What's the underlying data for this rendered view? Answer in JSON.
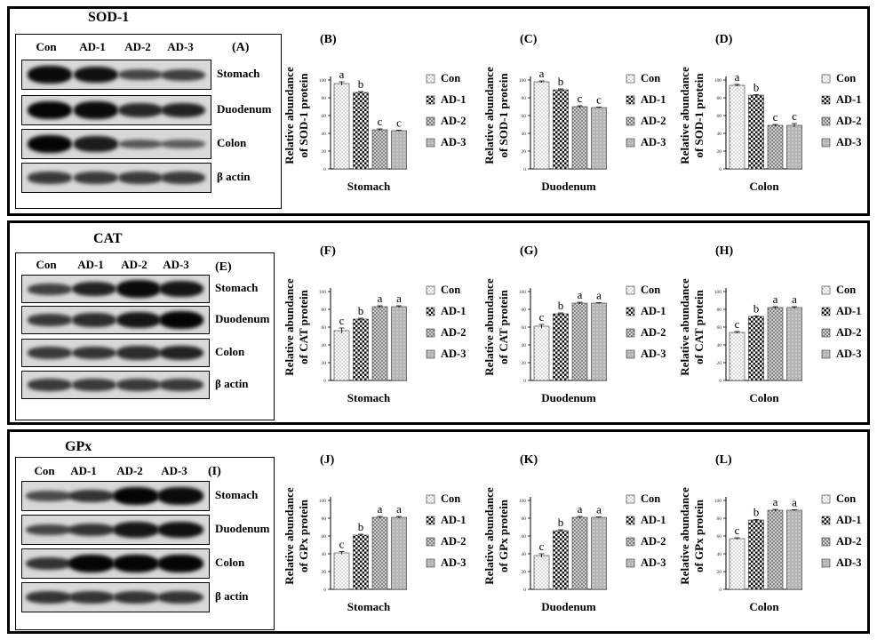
{
  "lanes": [
    "Con",
    "AD-1",
    "AD-2",
    "AD-3"
  ],
  "tissues": [
    "Stomach",
    "Duodenum",
    "Colon"
  ],
  "actin_label": "β actin",
  "sections": [
    {
      "title": "SOD-1",
      "blot_letter": "(A)",
      "band_intensity": [
        [
          0.95,
          0.9,
          0.45,
          0.5
        ],
        [
          1.0,
          0.95,
          0.7,
          0.75
        ],
        [
          1.0,
          0.8,
          0.3,
          0.25
        ],
        [
          0.55,
          0.55,
          0.55,
          0.55
        ]
      ],
      "charts": [
        {
          "letter": "(B)"
        },
        {
          "letter": "(C)"
        },
        {
          "letter": "(D)"
        }
      ]
    },
    {
      "title": "CAT",
      "blot_letter": "(E)",
      "band_intensity": [
        [
          0.5,
          0.75,
          0.95,
          0.85
        ],
        [
          0.55,
          0.65,
          0.85,
          1.0
        ],
        [
          0.55,
          0.6,
          0.65,
          0.75
        ],
        [
          0.55,
          0.55,
          0.55,
          0.55
        ]
      ],
      "charts": [
        {
          "letter": "(F)"
        },
        {
          "letter": "(G)"
        },
        {
          "letter": "(H)"
        }
      ]
    },
    {
      "title": "GPx",
      "blot_letter": "(I)",
      "band_intensity": [
        [
          0.4,
          0.6,
          1.0,
          0.95
        ],
        [
          0.45,
          0.6,
          0.85,
          0.9
        ],
        [
          0.6,
          1.0,
          1.0,
          1.0
        ],
        [
          0.6,
          0.6,
          0.6,
          0.6
        ]
      ],
      "charts": [
        {
          "letter": "(J)"
        },
        {
          "letter": "(K)"
        },
        {
          "letter": "(L)"
        }
      ]
    }
  ],
  "chart_data": [
    {
      "type": "bar",
      "letter": "(B)",
      "ylabel": "Relative abundance of SOD-1 protein",
      "xlabel": "Stomach",
      "categories": [
        "Con",
        "AD-1",
        "AD-2",
        "AD-3"
      ],
      "values": [
        96,
        86,
        44,
        43
      ],
      "errors": [
        2,
        1,
        1,
        0.5
      ],
      "sig": [
        "a",
        "b",
        "c",
        "c"
      ],
      "ylim": [
        0,
        100
      ],
      "legend": "right"
    },
    {
      "type": "bar",
      "letter": "(C)",
      "ylabel": "Relative abundance of SOD-1 protein",
      "xlabel": "Duodenum",
      "categories": [
        "Con",
        "AD-1",
        "AD-2",
        "AD-3"
      ],
      "values": [
        98,
        89,
        70,
        69
      ],
      "errors": [
        1,
        1,
        1,
        0.5
      ],
      "sig": [
        "a",
        "b",
        "c",
        "c"
      ],
      "ylim": [
        0,
        100
      ],
      "legend": "right"
    },
    {
      "type": "bar",
      "letter": "(D)",
      "ylabel": "Relative abundance of SOD-1 protein",
      "xlabel": "Colon",
      "categories": [
        "Con",
        "AD-1",
        "AD-2",
        "AD-3"
      ],
      "values": [
        94,
        83,
        49,
        49
      ],
      "errors": [
        1,
        0.5,
        1,
        2
      ],
      "sig": [
        "a",
        "b",
        "c",
        "c"
      ],
      "ylim": [
        0,
        100
      ],
      "legend": "right"
    },
    {
      "type": "bar",
      "letter": "(F)",
      "ylabel": "Relative abundance of CAT protein",
      "xlabel": "Stomach",
      "categories": [
        "Con",
        "AD-1",
        "AD-2",
        "AD-3"
      ],
      "values": [
        56,
        69,
        83,
        83
      ],
      "errors": [
        3,
        1,
        1,
        1
      ],
      "sig": [
        "c",
        "b",
        "a",
        "a"
      ],
      "ylim": [
        0,
        100
      ],
      "legend": "right"
    },
    {
      "type": "bar",
      "letter": "(G)",
      "ylabel": "Relative abundance of CAT protein",
      "xlabel": "Duodenum",
      "categories": [
        "Con",
        "AD-1",
        "AD-2",
        "AD-3"
      ],
      "values": [
        61,
        75,
        87,
        87
      ],
      "errors": [
        2,
        1,
        1,
        0.5
      ],
      "sig": [
        "c",
        "b",
        "a",
        "a"
      ],
      "ylim": [
        0,
        100
      ],
      "legend": "right"
    },
    {
      "type": "bar",
      "letter": "(H)",
      "ylabel": "Relative abundance of CAT protein",
      "xlabel": "Colon",
      "categories": [
        "Con",
        "AD-1",
        "AD-2",
        "AD-3"
      ],
      "values": [
        54,
        72,
        82,
        82
      ],
      "errors": [
        1,
        0.5,
        1,
        1
      ],
      "sig": [
        "c",
        "b",
        "a",
        "a"
      ],
      "ylim": [
        0,
        100
      ],
      "legend": "right"
    },
    {
      "type": "bar",
      "letter": "(J)",
      "ylabel": "Relative abundance of GPx protein",
      "xlabel": "Stomach",
      "categories": [
        "Con",
        "AD-1",
        "AD-2",
        "AD-3"
      ],
      "values": [
        41,
        61,
        81,
        81
      ],
      "errors": [
        1.5,
        1,
        1,
        1
      ],
      "sig": [
        "c",
        "b",
        "a",
        "a"
      ],
      "ylim": [
        0,
        100
      ],
      "legend": "right"
    },
    {
      "type": "bar",
      "letter": "(K)",
      "ylabel": "Relative abundance of GPx protein",
      "xlabel": "Duodenum",
      "categories": [
        "Con",
        "AD-1",
        "AD-2",
        "AD-3"
      ],
      "values": [
        38,
        66,
        81,
        81
      ],
      "errors": [
        2,
        1,
        1,
        0.5
      ],
      "sig": [
        "c",
        "b",
        "a",
        "a"
      ],
      "ylim": [
        0,
        100
      ],
      "legend": "right"
    },
    {
      "type": "bar",
      "letter": "(L)",
      "ylabel": "Relative abundance of GPx protein",
      "xlabel": "Colon",
      "categories": [
        "Con",
        "AD-1",
        "AD-2",
        "AD-3"
      ],
      "values": [
        57,
        78,
        89,
        89
      ],
      "errors": [
        1,
        0.5,
        1,
        0.5
      ],
      "sig": [
        "c",
        "b",
        "a",
        "a"
      ],
      "ylim": [
        0,
        100
      ],
      "legend": "right"
    }
  ],
  "tick_labels": [
    "0",
    "20",
    "40",
    "60",
    "80",
    "100"
  ]
}
